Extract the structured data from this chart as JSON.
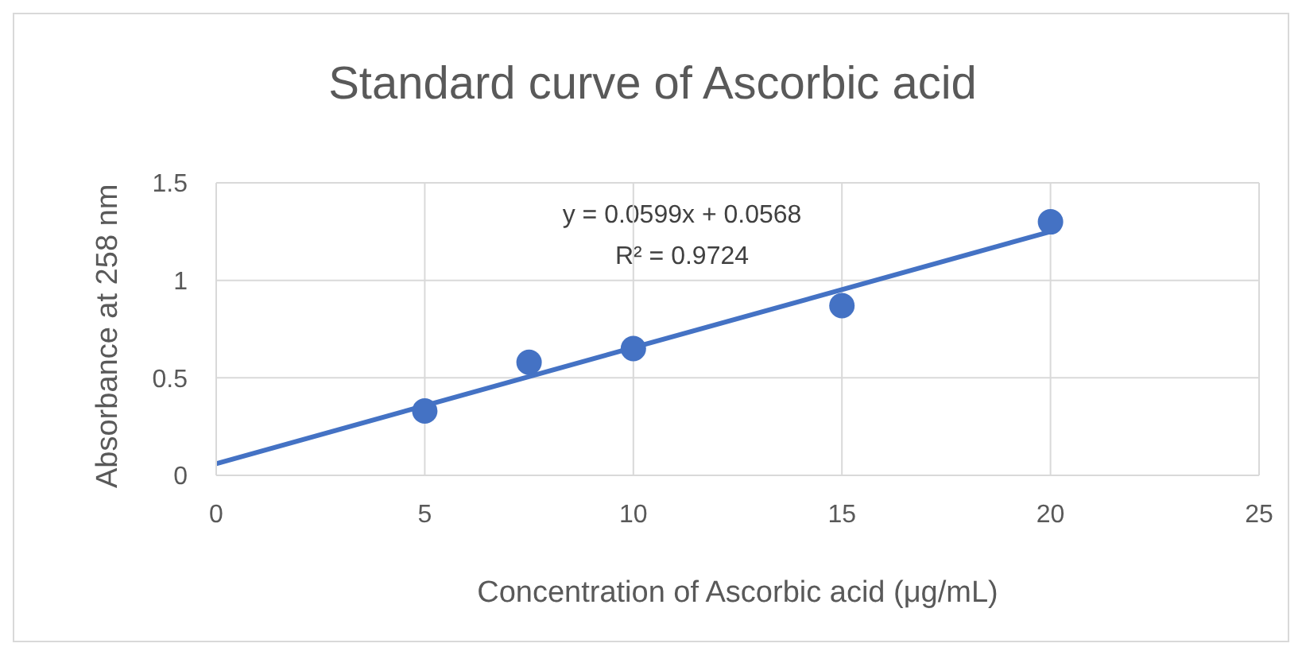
{
  "chart_data": {
    "type": "scatter",
    "title": "Standard curve of Ascorbic acid",
    "xlabel": "Concentration of Ascorbic acid (μg/mL)",
    "ylabel": "Absorbance at 258 nm",
    "annotations": [
      "y = 0.0599x + 0.0568",
      "R² = 0.9724"
    ],
    "x": [
      5,
      7.5,
      10,
      15,
      20
    ],
    "series": [
      {
        "color": "#4472c4",
        "marker": "circle",
        "values": [
          0.33,
          0.58,
          0.65,
          0.87,
          1.3
        ]
      },
      {
        "type": "line",
        "color": "#4472c4",
        "marker": "none",
        "x": [
          0,
          20
        ],
        "values": [
          0.06,
          1.25
        ]
      }
    ],
    "xlim": [
      0,
      25
    ],
    "xticks": [
      0,
      5,
      10,
      15,
      20,
      25
    ],
    "ylim": [
      0,
      1.5
    ],
    "yticks": [
      0,
      0.5,
      1,
      1.5
    ],
    "grid": true,
    "legend": false,
    "line_style": "solid"
  }
}
